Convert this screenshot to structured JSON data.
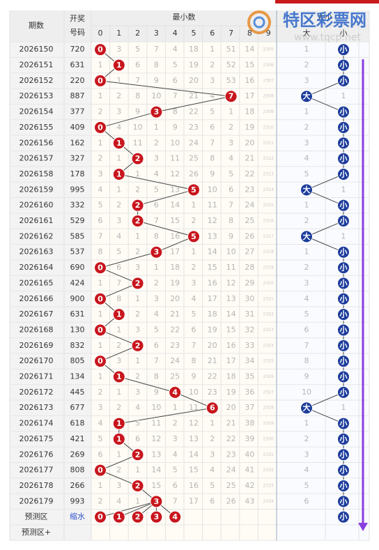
{
  "header": {
    "issue": "期数",
    "number_line1": "开奖",
    "number_line2": "号码",
    "min_title": "最小数",
    "digits": [
      0,
      1,
      2,
      3,
      4,
      5,
      6,
      7,
      8,
      9
    ],
    "bs_title": "大小",
    "big": "大",
    "small": "小"
  },
  "watermark": {
    "name": "特区彩票网",
    "url": "www.tqcp.net"
  },
  "rows": [
    {
      "issue": "2026150",
      "number": "720",
      "cells": [
        0,
        3,
        5,
        7,
        4,
        18,
        1,
        51,
        14,
        2305
      ],
      "hit": 0,
      "bs": [
        1,
        "小"
      ]
    },
    {
      "issue": "2026151",
      "number": "631",
      "cells": [
        1,
        1,
        6,
        8,
        5,
        19,
        2,
        52,
        15,
        2306
      ],
      "hit": 1,
      "bs": [
        2,
        "小"
      ]
    },
    {
      "issue": "2026152",
      "number": "220",
      "cells": [
        0,
        1,
        7,
        9,
        6,
        20,
        3,
        53,
        16,
        2307
      ],
      "hit": 0,
      "bs": [
        3,
        "小"
      ]
    },
    {
      "issue": "2026153",
      "number": "887",
      "cells": [
        1,
        2,
        8,
        10,
        7,
        21,
        4,
        7,
        17,
        2308
      ],
      "hit": 7,
      "bs": [
        "大",
        1
      ]
    },
    {
      "issue": "2026154",
      "number": "377",
      "cells": [
        2,
        3,
        9,
        3,
        8,
        22,
        5,
        1,
        18,
        2309
      ],
      "hit": 3,
      "bs": [
        1,
        "小"
      ]
    },
    {
      "issue": "2026155",
      "number": "409",
      "cells": [
        0,
        4,
        10,
        1,
        9,
        23,
        6,
        2,
        19,
        2310
      ],
      "hit": 0,
      "bs": [
        2,
        "小"
      ]
    },
    {
      "issue": "2026156",
      "number": "162",
      "cells": [
        1,
        1,
        11,
        2,
        10,
        24,
        7,
        3,
        20,
        2311
      ],
      "hit": 1,
      "bs": [
        3,
        "小"
      ]
    },
    {
      "issue": "2026157",
      "number": "327",
      "cells": [
        2,
        1,
        2,
        3,
        11,
        25,
        8,
        4,
        21,
        2312
      ],
      "hit": 2,
      "bs": [
        4,
        "小"
      ]
    },
    {
      "issue": "2026158",
      "number": "178",
      "cells": [
        3,
        1,
        1,
        4,
        12,
        26,
        9,
        5,
        22,
        2313
      ],
      "hit": 1,
      "bs": [
        5,
        "小"
      ]
    },
    {
      "issue": "2026159",
      "number": "995",
      "cells": [
        4,
        1,
        2,
        5,
        13,
        5,
        10,
        6,
        23,
        2314
      ],
      "hit": 5,
      "bs": [
        "大",
        1
      ]
    },
    {
      "issue": "2026160",
      "number": "332",
      "cells": [
        5,
        2,
        2,
        6,
        14,
        1,
        11,
        7,
        24,
        2315
      ],
      "hit": 2,
      "bs": [
        1,
        "小"
      ]
    },
    {
      "issue": "2026161",
      "number": "529",
      "cells": [
        6,
        3,
        2,
        7,
        15,
        2,
        12,
        8,
        25,
        2316
      ],
      "hit": 2,
      "bs": [
        2,
        "小"
      ]
    },
    {
      "issue": "2026162",
      "number": "585",
      "cells": [
        7,
        4,
        1,
        8,
        16,
        5,
        13,
        9,
        26,
        2317
      ],
      "hit": 5,
      "bs": [
        "大",
        1
      ]
    },
    {
      "issue": "2026163",
      "number": "537",
      "cells": [
        8,
        5,
        2,
        3,
        17,
        1,
        14,
        10,
        27,
        2318
      ],
      "hit": 3,
      "bs": [
        1,
        "小"
      ]
    },
    {
      "issue": "2026164",
      "number": "690",
      "cells": [
        0,
        6,
        3,
        1,
        18,
        2,
        15,
        11,
        28,
        2319
      ],
      "hit": 0,
      "bs": [
        2,
        "小"
      ]
    },
    {
      "issue": "2026165",
      "number": "424",
      "cells": [
        1,
        7,
        2,
        2,
        19,
        3,
        16,
        12,
        29,
        2320
      ],
      "hit": 2,
      "bs": [
        3,
        "小"
      ]
    },
    {
      "issue": "2026166",
      "number": "900",
      "cells": [
        0,
        8,
        1,
        3,
        20,
        4,
        17,
        13,
        30,
        2321
      ],
      "hit": 0,
      "bs": [
        4,
        "小"
      ]
    },
    {
      "issue": "2026167",
      "number": "631",
      "cells": [
        1,
        1,
        2,
        4,
        21,
        5,
        18,
        14,
        31,
        2322
      ],
      "hit": 1,
      "bs": [
        5,
        "小"
      ]
    },
    {
      "issue": "2026168",
      "number": "130",
      "cells": [
        0,
        1,
        3,
        5,
        22,
        6,
        19,
        15,
        32,
        2323
      ],
      "hit": 0,
      "bs": [
        6,
        "小"
      ]
    },
    {
      "issue": "2026169",
      "number": "832",
      "cells": [
        1,
        2,
        2,
        6,
        23,
        7,
        20,
        16,
        33,
        2324
      ],
      "hit": 2,
      "bs": [
        7,
        "小"
      ]
    },
    {
      "issue": "2026170",
      "number": "805",
      "cells": [
        0,
        3,
        1,
        7,
        24,
        8,
        21,
        17,
        34,
        2325
      ],
      "hit": 0,
      "bs": [
        8,
        "小"
      ]
    },
    {
      "issue": "2026171",
      "number": "134",
      "cells": [
        1,
        1,
        2,
        8,
        25,
        9,
        22,
        18,
        35,
        2326
      ],
      "hit": 1,
      "bs": [
        9,
        "小"
      ]
    },
    {
      "issue": "2026172",
      "number": "445",
      "cells": [
        2,
        1,
        3,
        9,
        4,
        10,
        23,
        19,
        36,
        2327
      ],
      "hit": 4,
      "bs": [
        10,
        "小"
      ]
    },
    {
      "issue": "2026173",
      "number": "677",
      "cells": [
        3,
        2,
        4,
        10,
        1,
        11,
        6,
        20,
        37,
        2328
      ],
      "hit": 6,
      "bs": [
        "大",
        1
      ]
    },
    {
      "issue": "2026174",
      "number": "618",
      "cells": [
        4,
        1,
        5,
        11,
        2,
        12,
        1,
        21,
        38,
        2329
      ],
      "hit": 1,
      "bs": [
        1,
        "小"
      ]
    },
    {
      "issue": "2026175",
      "number": "421",
      "cells": [
        5,
        1,
        6,
        12,
        3,
        13,
        2,
        22,
        39,
        2330
      ],
      "hit": 1,
      "bs": [
        2,
        "小"
      ]
    },
    {
      "issue": "2026176",
      "number": "269",
      "cells": [
        6,
        1,
        2,
        13,
        4,
        14,
        3,
        23,
        40,
        2331
      ],
      "hit": 2,
      "bs": [
        3,
        "小"
      ]
    },
    {
      "issue": "2026177",
      "number": "808",
      "cells": [
        0,
        2,
        1,
        14,
        5,
        15,
        4,
        24,
        41,
        2332
      ],
      "hit": 0,
      "bs": [
        4,
        "小"
      ]
    },
    {
      "issue": "2026178",
      "number": "266",
      "cells": [
        1,
        3,
        2,
        15,
        6,
        16,
        5,
        25,
        42,
        2333
      ],
      "hit": 2,
      "bs": [
        5,
        "小"
      ]
    },
    {
      "issue": "2026179",
      "number": "993",
      "cells": [
        2,
        4,
        1,
        3,
        7,
        17,
        6,
        26,
        43,
        2334
      ],
      "hit": 3,
      "bs": [
        6,
        "小"
      ]
    }
  ],
  "prediction": {
    "label": "预测区",
    "shrink": "缩水",
    "balls": [
      0,
      1,
      2,
      3,
      4
    ],
    "bs": "小"
  },
  "prediction_plus": "预测区+"
}
